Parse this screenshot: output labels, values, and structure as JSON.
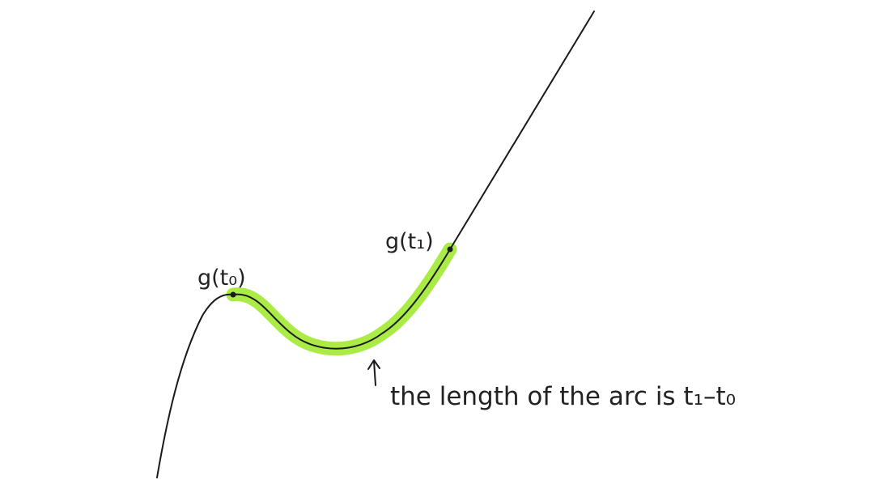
{
  "diagram": {
    "points": {
      "start": {
        "label": "g(t₀)"
      },
      "end": {
        "label": "g(t₁)"
      }
    },
    "annotation": {
      "arrow_symbol": "↑",
      "caption": "the length of the arc is t₁–t₀"
    },
    "colors": {
      "curve": "#1a1a1a",
      "highlight": "#a6ea3c",
      "text": "#222222"
    }
  }
}
